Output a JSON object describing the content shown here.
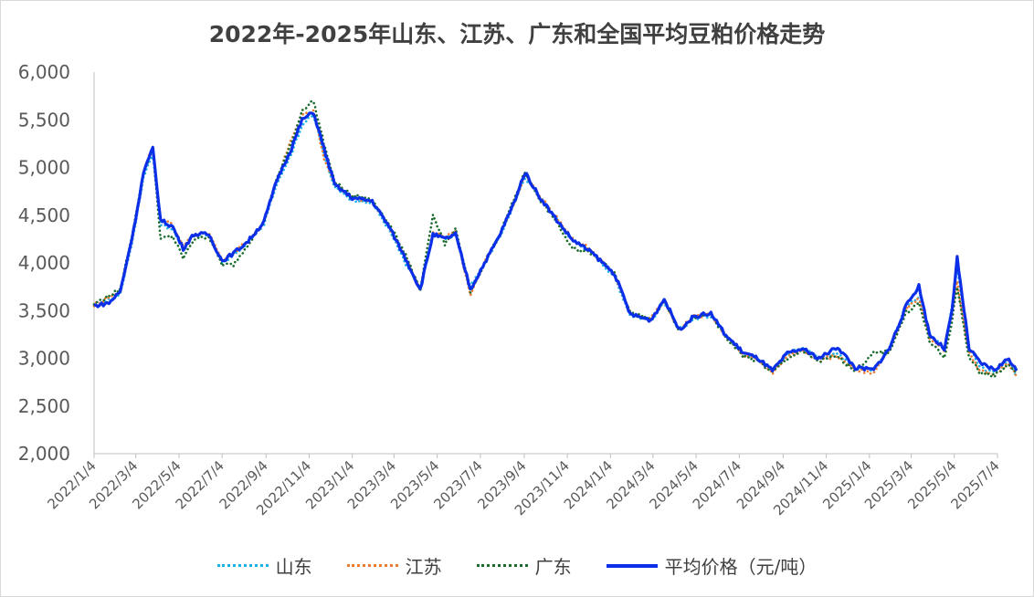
{
  "chart_data": {
    "type": "line",
    "title": "2022年-2025年山东、江苏、广东和全国平均豆粕价格走势",
    "xlabel": "",
    "ylabel": "",
    "ylim": [
      2000,
      6000
    ],
    "yticks": [
      "2,000",
      "2,500",
      "3,000",
      "3,500",
      "4,000",
      "4,500",
      "5,000",
      "5,500",
      "6,000"
    ],
    "xticks": [
      "2022/1/4",
      "2022/3/4",
      "2022/5/4",
      "2022/7/4",
      "2022/9/4",
      "2022/11/4",
      "2023/1/4",
      "2023/3/4",
      "2023/5/4",
      "2023/7/4",
      "2023/9/4",
      "2023/11/4",
      "2024/1/4",
      "2024/3/4",
      "2024/5/4",
      "2024/7/4",
      "2024/9/4",
      "2024/11/4",
      "2025/1/4",
      "2025/3/4",
      "2025/5/4",
      "2025/7/4"
    ],
    "grid": false,
    "legend_position": "bottom",
    "series": [
      {
        "name": "山东",
        "color": "#1ab0e8",
        "style": "dotted",
        "points": [
          [
            "2022/1/4",
            3540
          ],
          [
            "2022/2/10",
            3680
          ],
          [
            "2022/3/1",
            4300
          ],
          [
            "2022/3/15",
            4900
          ],
          [
            "2022/3/28",
            5150
          ],
          [
            "2022/4/8",
            4400
          ],
          [
            "2022/4/25",
            4350
          ],
          [
            "2022/5/10",
            4150
          ],
          [
            "2022/5/25",
            4280
          ],
          [
            "2022/6/15",
            4300
          ],
          [
            "2022/7/4",
            4000
          ],
          [
            "2022/7/20",
            4080
          ],
          [
            "2022/8/10",
            4220
          ],
          [
            "2022/9/1",
            4400
          ],
          [
            "2022/9/20",
            4850
          ],
          [
            "2022/10/10",
            5150
          ],
          [
            "2022/10/25",
            5450
          ],
          [
            "2022/11/10",
            5550
          ],
          [
            "2022/11/25",
            5150
          ],
          [
            "2022/12/10",
            4800
          ],
          [
            "2023/1/4",
            4650
          ],
          [
            "2023/2/1",
            4620
          ],
          [
            "2023/2/25",
            4350
          ],
          [
            "2023/3/20",
            4000
          ],
          [
            "2023/4/10",
            3750
          ],
          [
            "2023/4/28",
            4300
          ],
          [
            "2023/5/15",
            4250
          ],
          [
            "2023/5/30",
            4300
          ],
          [
            "2023/6/20",
            3750
          ],
          [
            "2023/7/10",
            4000
          ],
          [
            "2023/7/30",
            4250
          ],
          [
            "2023/8/20",
            4600
          ],
          [
            "2023/9/5",
            4900
          ],
          [
            "2023/9/25",
            4700
          ],
          [
            "2023/10/20",
            4450
          ],
          [
            "2023/11/10",
            4250
          ],
          [
            "2023/12/10",
            4100
          ],
          [
            "2024/1/10",
            3850
          ],
          [
            "2024/2/1",
            3450
          ],
          [
            "2024/3/1",
            3400
          ],
          [
            "2024/3/20",
            3580
          ],
          [
            "2024/4/10",
            3300
          ],
          [
            "2024/5/1",
            3420
          ],
          [
            "2024/5/25",
            3450
          ],
          [
            "2024/6/15",
            3250
          ],
          [
            "2024/7/10",
            3050
          ],
          [
            "2024/7/30",
            3000
          ],
          [
            "2024/8/20",
            2880
          ],
          [
            "2024/9/10",
            3050
          ],
          [
            "2024/10/1",
            3100
          ],
          [
            "2024/10/25",
            3000
          ],
          [
            "2024/11/20",
            3050
          ],
          [
            "2024/12/15",
            2900
          ],
          [
            "2025/1/10",
            2880
          ],
          [
            "2025/2/1",
            3100
          ],
          [
            "2025/2/25",
            3550
          ],
          [
            "2025/3/15",
            3650
          ],
          [
            "2025/3/30",
            3250
          ],
          [
            "2025/4/20",
            3100
          ],
          [
            "2025/5/1",
            3550
          ],
          [
            "2025/5/8",
            3950
          ],
          [
            "2025/5/25",
            3100
          ],
          [
            "2025/6/10",
            2900
          ],
          [
            "2025/6/30",
            2850
          ],
          [
            "2025/7/20",
            2970
          ],
          [
            "2025/7/31",
            2820
          ]
        ]
      },
      {
        "name": "江苏",
        "color": "#ed7d31",
        "style": "dotted",
        "points": [
          [
            "2022/1/4",
            3560
          ],
          [
            "2022/2/10",
            3700
          ],
          [
            "2022/3/1",
            4330
          ],
          [
            "2022/3/15",
            4950
          ],
          [
            "2022/3/28",
            5230
          ],
          [
            "2022/4/8",
            4450
          ],
          [
            "2022/4/25",
            4400
          ],
          [
            "2022/5/10",
            4180
          ],
          [
            "2022/5/25",
            4300
          ],
          [
            "2022/6/15",
            4320
          ],
          [
            "2022/7/4",
            4020
          ],
          [
            "2022/7/20",
            4100
          ],
          [
            "2022/8/10",
            4240
          ],
          [
            "2022/9/1",
            4420
          ],
          [
            "2022/9/20",
            4880
          ],
          [
            "2022/10/10",
            5300
          ],
          [
            "2022/10/25",
            5550
          ],
          [
            "2022/11/10",
            5600
          ],
          [
            "2022/11/25",
            5100
          ],
          [
            "2022/12/10",
            4830
          ],
          [
            "2023/1/4",
            4680
          ],
          [
            "2023/2/1",
            4650
          ],
          [
            "2023/2/25",
            4380
          ],
          [
            "2023/3/20",
            4050
          ],
          [
            "2023/4/10",
            3720
          ],
          [
            "2023/4/28",
            4320
          ],
          [
            "2023/5/15",
            4280
          ],
          [
            "2023/5/30",
            4320
          ],
          [
            "2023/6/20",
            3650
          ],
          [
            "2023/7/10",
            4020
          ],
          [
            "2023/7/30",
            4270
          ],
          [
            "2023/8/20",
            4620
          ],
          [
            "2023/9/5",
            4920
          ],
          [
            "2023/9/25",
            4720
          ],
          [
            "2023/10/20",
            4470
          ],
          [
            "2023/11/10",
            4270
          ],
          [
            "2023/12/10",
            4120
          ],
          [
            "2024/1/10",
            3870
          ],
          [
            "2024/2/1",
            3470
          ],
          [
            "2024/3/1",
            3420
          ],
          [
            "2024/3/20",
            3600
          ],
          [
            "2024/4/10",
            3300
          ],
          [
            "2024/5/1",
            3440
          ],
          [
            "2024/5/25",
            3460
          ],
          [
            "2024/6/15",
            3230
          ],
          [
            "2024/7/10",
            3030
          ],
          [
            "2024/7/30",
            2980
          ],
          [
            "2024/8/20",
            2850
          ],
          [
            "2024/9/10",
            3020
          ],
          [
            "2024/10/1",
            3080
          ],
          [
            "2024/10/25",
            2980
          ],
          [
            "2024/11/20",
            3030
          ],
          [
            "2024/12/15",
            2880
          ],
          [
            "2025/1/10",
            2850
          ],
          [
            "2025/2/1",
            3080
          ],
          [
            "2025/2/25",
            3520
          ],
          [
            "2025/3/15",
            3620
          ],
          [
            "2025/3/30",
            3220
          ],
          [
            "2025/4/20",
            3080
          ],
          [
            "2025/5/1",
            3500
          ],
          [
            "2025/5/8",
            3800
          ],
          [
            "2025/5/25",
            3050
          ],
          [
            "2025/6/10",
            2870
          ],
          [
            "2025/6/30",
            2830
          ],
          [
            "2025/7/20",
            2950
          ],
          [
            "2025/7/31",
            2800
          ]
        ]
      },
      {
        "name": "广东",
        "color": "#1a6b2e",
        "style": "dotted",
        "points": [
          [
            "2022/1/4",
            3570
          ],
          [
            "2022/2/10",
            3720
          ],
          [
            "2022/3/1",
            4380
          ],
          [
            "2022/3/15",
            4950
          ],
          [
            "2022/3/28",
            5200
          ],
          [
            "2022/4/8",
            4250
          ],
          [
            "2022/4/25",
            4280
          ],
          [
            "2022/5/10",
            4050
          ],
          [
            "2022/5/25",
            4250
          ],
          [
            "2022/6/15",
            4280
          ],
          [
            "2022/7/4",
            3980
          ],
          [
            "2022/7/20",
            3980
          ],
          [
            "2022/8/10",
            4200
          ],
          [
            "2022/9/1",
            4430
          ],
          [
            "2022/9/20",
            4900
          ],
          [
            "2022/10/10",
            5250
          ],
          [
            "2022/10/25",
            5600
          ],
          [
            "2022/11/10",
            5700
          ],
          [
            "2022/11/25",
            5250
          ],
          [
            "2022/12/10",
            4850
          ],
          [
            "2023/1/4",
            4700
          ],
          [
            "2023/2/1",
            4670
          ],
          [
            "2023/2/25",
            4400
          ],
          [
            "2023/3/20",
            4100
          ],
          [
            "2023/4/10",
            3700
          ],
          [
            "2023/4/28",
            4500
          ],
          [
            "2023/5/15",
            4200
          ],
          [
            "2023/5/30",
            4350
          ],
          [
            "2023/6/20",
            3700
          ],
          [
            "2023/7/10",
            4000
          ],
          [
            "2023/7/30",
            4280
          ],
          [
            "2023/8/20",
            4650
          ],
          [
            "2023/9/5",
            4950
          ],
          [
            "2023/9/25",
            4680
          ],
          [
            "2023/10/20",
            4430
          ],
          [
            "2023/11/10",
            4150
          ],
          [
            "2023/12/10",
            4100
          ],
          [
            "2024/1/10",
            3900
          ],
          [
            "2024/2/1",
            3480
          ],
          [
            "2024/3/1",
            3400
          ],
          [
            "2024/3/20",
            3600
          ],
          [
            "2024/4/10",
            3280
          ],
          [
            "2024/5/1",
            3430
          ],
          [
            "2024/5/25",
            3450
          ],
          [
            "2024/6/15",
            3220
          ],
          [
            "2024/7/10",
            3020
          ],
          [
            "2024/7/30",
            2970
          ],
          [
            "2024/8/20",
            2850
          ],
          [
            "2024/9/10",
            3000
          ],
          [
            "2024/10/1",
            3070
          ],
          [
            "2024/10/25",
            2970
          ],
          [
            "2024/11/20",
            3020
          ],
          [
            "2024/12/15",
            2870
          ],
          [
            "2025/1/10",
            3050
          ],
          [
            "2025/2/1",
            3070
          ],
          [
            "2025/2/25",
            3480
          ],
          [
            "2025/3/15",
            3580
          ],
          [
            "2025/3/30",
            3180
          ],
          [
            "2025/4/20",
            3000
          ],
          [
            "2025/5/1",
            3400
          ],
          [
            "2025/5/8",
            3750
          ],
          [
            "2025/5/25",
            3000
          ],
          [
            "2025/6/10",
            2850
          ],
          [
            "2025/6/30",
            2820
          ],
          [
            "2025/7/20",
            2940
          ],
          [
            "2025/7/31",
            2830
          ]
        ]
      },
      {
        "name": "平均价格（元/吨）",
        "color": "#0b2fe8",
        "style": "solid",
        "points": [
          [
            "2022/1/4",
            3550
          ],
          [
            "2022/1/25",
            3580
          ],
          [
            "2022/2/10",
            3700
          ],
          [
            "2022/3/1",
            4350
          ],
          [
            "2022/3/15",
            4950
          ],
          [
            "2022/3/28",
            5200
          ],
          [
            "2022/4/8",
            4450
          ],
          [
            "2022/4/25",
            4380
          ],
          [
            "2022/5/10",
            4150
          ],
          [
            "2022/5/25",
            4300
          ],
          [
            "2022/6/15",
            4300
          ],
          [
            "2022/7/4",
            4020
          ],
          [
            "2022/7/20",
            4100
          ],
          [
            "2022/8/10",
            4230
          ],
          [
            "2022/9/1",
            4430
          ],
          [
            "2022/9/20",
            4880
          ],
          [
            "2022/10/10",
            5200
          ],
          [
            "2022/10/25",
            5500
          ],
          [
            "2022/11/10",
            5580
          ],
          [
            "2022/11/25",
            5200
          ],
          [
            "2022/12/10",
            4820
          ],
          [
            "2023/1/4",
            4680
          ],
          [
            "2023/2/1",
            4650
          ],
          [
            "2023/2/25",
            4380
          ],
          [
            "2023/3/20",
            4050
          ],
          [
            "2023/4/10",
            3720
          ],
          [
            "2023/4/28",
            4300
          ],
          [
            "2023/5/15",
            4250
          ],
          [
            "2023/5/30",
            4300
          ],
          [
            "2023/6/20",
            3720
          ],
          [
            "2023/7/10",
            4000
          ],
          [
            "2023/7/30",
            4270
          ],
          [
            "2023/8/20",
            4620
          ],
          [
            "2023/9/5",
            4950
          ],
          [
            "2023/9/25",
            4700
          ],
          [
            "2023/10/20",
            4450
          ],
          [
            "2023/11/10",
            4250
          ],
          [
            "2023/12/10",
            4100
          ],
          [
            "2024/1/10",
            3880
          ],
          [
            "2024/2/1",
            3460
          ],
          [
            "2024/3/1",
            3400
          ],
          [
            "2024/3/20",
            3620
          ],
          [
            "2024/4/10",
            3300
          ],
          [
            "2024/5/1",
            3440
          ],
          [
            "2024/5/25",
            3470
          ],
          [
            "2024/6/15",
            3240
          ],
          [
            "2024/7/10",
            3060
          ],
          [
            "2024/7/30",
            3000
          ],
          [
            "2024/8/20",
            2870
          ],
          [
            "2024/9/10",
            3050
          ],
          [
            "2024/10/1",
            3100
          ],
          [
            "2024/10/25",
            3000
          ],
          [
            "2024/11/20",
            3120
          ],
          [
            "2024/12/15",
            2900
          ],
          [
            "2025/1/10",
            2880
          ],
          [
            "2025/2/1",
            3100
          ],
          [
            "2025/2/25",
            3550
          ],
          [
            "2025/3/15",
            3760
          ],
          [
            "2025/3/30",
            3250
          ],
          [
            "2025/4/20",
            3100
          ],
          [
            "2025/5/1",
            3500
          ],
          [
            "2025/5/8",
            4050
          ],
          [
            "2025/5/25",
            3100
          ],
          [
            "2025/6/10",
            2950
          ],
          [
            "2025/6/30",
            2880
          ],
          [
            "2025/7/20",
            3000
          ],
          [
            "2025/7/31",
            2870
          ]
        ]
      }
    ]
  }
}
